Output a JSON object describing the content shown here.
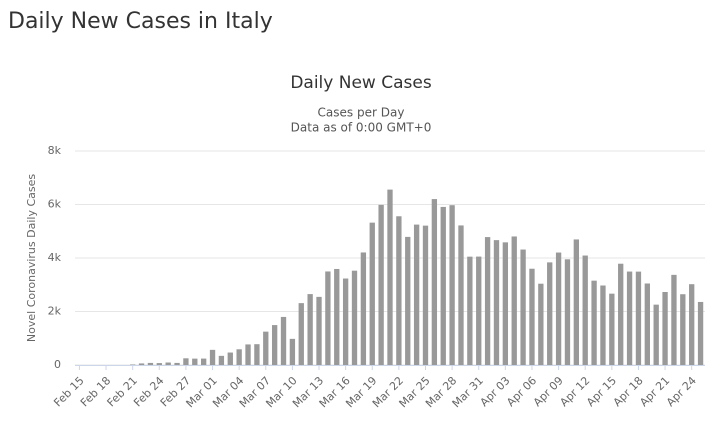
{
  "header": {
    "title": "Daily New Cases in Italy"
  },
  "chart_data": {
    "type": "bar",
    "title": "Daily New Cases",
    "subtitle": [
      "Cases per Day",
      "Data as of 0:00 GMT+0"
    ],
    "y_label": "Novel Coronavirus Daily Cases",
    "color": "#999999",
    "grid": true,
    "ylim": [
      0,
      8000
    ],
    "yticks": [
      0,
      {
        "value": 2000,
        "label": "2k"
      },
      {
        "value": 4000,
        "label": "4k"
      },
      {
        "value": 6000,
        "label": "6k"
      },
      {
        "value": 8000,
        "label": "8k"
      }
    ],
    "categories": [
      "Feb 15",
      null,
      null,
      "Feb 18",
      null,
      null,
      "Feb 21",
      null,
      null,
      "Feb 24",
      null,
      null,
      "Feb 27",
      null,
      null,
      "Mar 01",
      null,
      null,
      "Mar 04",
      null,
      null,
      "Mar 07",
      null,
      null,
      "Mar 10",
      null,
      null,
      "Mar 13",
      null,
      null,
      "Mar 16",
      null,
      null,
      "Mar 19",
      null,
      null,
      "Mar 22",
      null,
      null,
      "Mar 25",
      null,
      null,
      "Mar 28",
      null,
      null,
      "Mar 31",
      null,
      null,
      "Apr 03",
      null,
      null,
      "Apr 06",
      null,
      null,
      "Apr 09",
      null,
      null,
      "Apr 12",
      null,
      null,
      "Apr 15",
      null,
      null,
      "Apr 18",
      null,
      null,
      "Apr 21",
      null,
      null,
      "Apr 24",
      null
    ],
    "values": [
      0,
      0,
      0,
      0,
      0,
      0,
      20,
      59,
      78,
      72,
      93,
      78,
      250,
      238,
      240,
      566,
      342,
      466,
      587,
      769,
      778,
      1247,
      1492,
      1797,
      977,
      2313,
      2651,
      2547,
      3497,
      3590,
      3233,
      3526,
      4207,
      5322,
      5986,
      6557,
      5560,
      4789,
      5249,
      5210,
      6203,
      5909,
      5974,
      5217,
      4050,
      4053,
      4782,
      4668,
      4585,
      4805,
      4316,
      3599,
      3039,
      3836,
      4204,
      3951,
      4694,
      4092,
      3153,
      2972,
      2667,
      3786,
      3493,
      3491,
      3047,
      2256,
      2729,
      3370,
      2646,
      3021,
      2357
    ]
  }
}
